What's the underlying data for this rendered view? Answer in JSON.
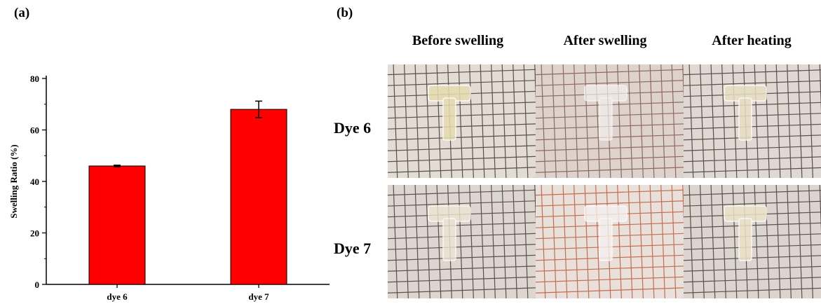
{
  "panel_a_label": "(a)",
  "panel_b_label": "(b)",
  "chart_data": {
    "type": "bar",
    "categories": [
      "dye 6",
      "dye 7"
    ],
    "values": [
      46,
      68
    ],
    "errors": [
      0.3,
      3.2
    ],
    "ylabel": "Swelling Ratio (%)",
    "xlabel": "",
    "ylim": [
      0,
      80
    ],
    "yticks": [
      0,
      20,
      40,
      60,
      80
    ],
    "bar_color": "#ff0000",
    "grid": false
  },
  "photo_grid": {
    "columns": [
      "Before swelling",
      "After swelling",
      "After heating"
    ],
    "rows": [
      "Dye 6",
      "Dye 7"
    ],
    "photos": [
      {
        "row": 0,
        "col": 0,
        "bg": "#e3dcd5",
        "line": "#5a4f4b",
        "specimen": "#e6dcb0",
        "opacity": 0.85
      },
      {
        "row": 0,
        "col": 1,
        "bg": "#ddd3cc",
        "line": "#8c6a60",
        "specimen": "#f4f0ef",
        "opacity": 0.7
      },
      {
        "row": 0,
        "col": 2,
        "bg": "#e0d8d2",
        "line": "#5a4f4b",
        "specimen": "#e8e0c2",
        "opacity": 0.85
      },
      {
        "row": 1,
        "col": 0,
        "bg": "#ddd6d0",
        "line": "#5a504c",
        "specimen": "#ece6d4",
        "opacity": 0.8
      },
      {
        "row": 1,
        "col": 1,
        "bg": "#e9dfdb",
        "line": "#c0704f",
        "specimen": "#f5f1ee",
        "opacity": 0.8
      },
      {
        "row": 1,
        "col": 2,
        "bg": "#dcd5cf",
        "line": "#5a504c",
        "specimen": "#ebe3c8",
        "opacity": 0.85
      }
    ]
  }
}
